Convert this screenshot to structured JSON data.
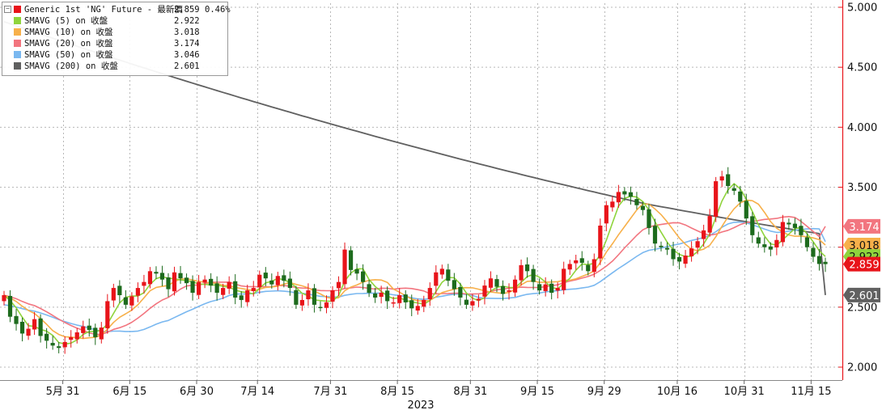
{
  "legend": [
    {
      "label": "Generic 1st 'NG' Future - 最新價",
      "value": "2.859",
      "change": "0.46%",
      "color": "#e8141a"
    },
    {
      "label": "SMAVG (5)  on 收盤",
      "value": "2.922",
      "color": "#8fd43c"
    },
    {
      "label": "SMAVG (10)  on 收盤",
      "value": "3.018",
      "color": "#f7b04a"
    },
    {
      "label": "SMAVG (20)  on 收盤",
      "value": "3.174",
      "color": "#f2757f"
    },
    {
      "label": "SMAVG (50)  on 收盤",
      "value": "3.046",
      "color": "#7ab8f0"
    },
    {
      "label": "SMAVG (200)  on 收盤",
      "value": "2.601",
      "color": "#606060"
    }
  ],
  "colors": {
    "up": "#e8141a",
    "down": "#1d6b1d",
    "grid": "#b8b8b8",
    "axis": "#e8141a",
    "text": "#111111"
  },
  "chart_data": {
    "type": "candlestick",
    "y_ticks": [
      "5.000",
      "4.500",
      "4.000",
      "3.500",
      "3.000",
      "2.500",
      "2.000"
    ],
    "y_tick_values": [
      5.0,
      4.5,
      4.0,
      3.5,
      3.0,
      2.5,
      2.0
    ],
    "ylim": [
      1.98,
      5.02
    ],
    "x_ticks": [
      "5月 31",
      "6月 15",
      "6月 30",
      "7月 14",
      "7月 31",
      "8月 15",
      "8月 31",
      "9月 15",
      "9月 29",
      "10月 16",
      "10月 31",
      "11月 15"
    ],
    "x_tick_index": [
      5,
      16,
      27,
      37,
      49,
      60,
      72,
      83,
      94,
      106,
      117,
      128
    ],
    "x_sublabel": "2023",
    "grid": true,
    "last_value_labels": [
      {
        "text": "3.174",
        "value": 3.174,
        "color": "#f2757f"
      },
      {
        "text": "3.018",
        "value": 3.018,
        "color": "#f7b04a"
      },
      {
        "text": "2.922",
        "value": 2.922,
        "color": "#8fd43c"
      },
      {
        "text": "2.859",
        "value": 2.859,
        "color": "#e8141a"
      },
      {
        "text": "2.601",
        "value": 2.601,
        "color": "#606060"
      }
    ],
    "close": [
      2.6,
      2.42,
      2.36,
      2.28,
      2.32,
      2.4,
      2.26,
      2.22,
      2.18,
      2.16,
      2.21,
      2.25,
      2.29,
      2.34,
      2.31,
      2.25,
      2.33,
      2.55,
      2.66,
      2.6,
      2.52,
      2.59,
      2.66,
      2.71,
      2.8,
      2.78,
      2.73,
      2.65,
      2.79,
      2.74,
      2.7,
      2.62,
      2.71,
      2.73,
      2.68,
      2.62,
      2.66,
      2.71,
      2.58,
      2.56,
      2.64,
      2.66,
      2.77,
      2.74,
      2.69,
      2.76,
      2.72,
      2.66,
      2.52,
      2.56,
      2.64,
      2.52,
      2.5,
      2.54,
      2.64,
      2.71,
      2.98,
      2.81,
      2.78,
      2.71,
      2.62,
      2.58,
      2.62,
      2.55,
      2.54,
      2.6,
      2.54,
      2.49,
      2.51,
      2.56,
      2.66,
      2.79,
      2.82,
      2.72,
      2.65,
      2.58,
      2.52,
      2.55,
      2.57,
      2.68,
      2.74,
      2.67,
      2.61,
      2.64,
      2.73,
      2.85,
      2.8,
      2.71,
      2.64,
      2.69,
      2.62,
      2.66,
      2.82,
      2.86,
      2.89,
      2.87,
      2.8,
      2.9,
      3.18,
      3.35,
      3.38,
      3.46,
      3.44,
      3.42,
      3.35,
      3.31,
      3.16,
      3.03,
      3.0,
      2.98,
      2.9,
      2.88,
      2.93,
      2.99,
      3.05,
      3.14,
      3.26,
      3.55,
      3.59,
      3.51,
      3.47,
      3.38,
      3.24,
      3.1,
      3.03,
      3.0,
      2.98,
      3.06,
      3.21,
      3.19,
      3.16,
      3.1,
      3.0,
      2.92,
      2.86,
      2.859
    ],
    "sma5_last": 2.922,
    "sma10_last": 3.018,
    "sma20_last": 3.174,
    "sma50_last": 3.046,
    "sma200_last": 2.601
  }
}
